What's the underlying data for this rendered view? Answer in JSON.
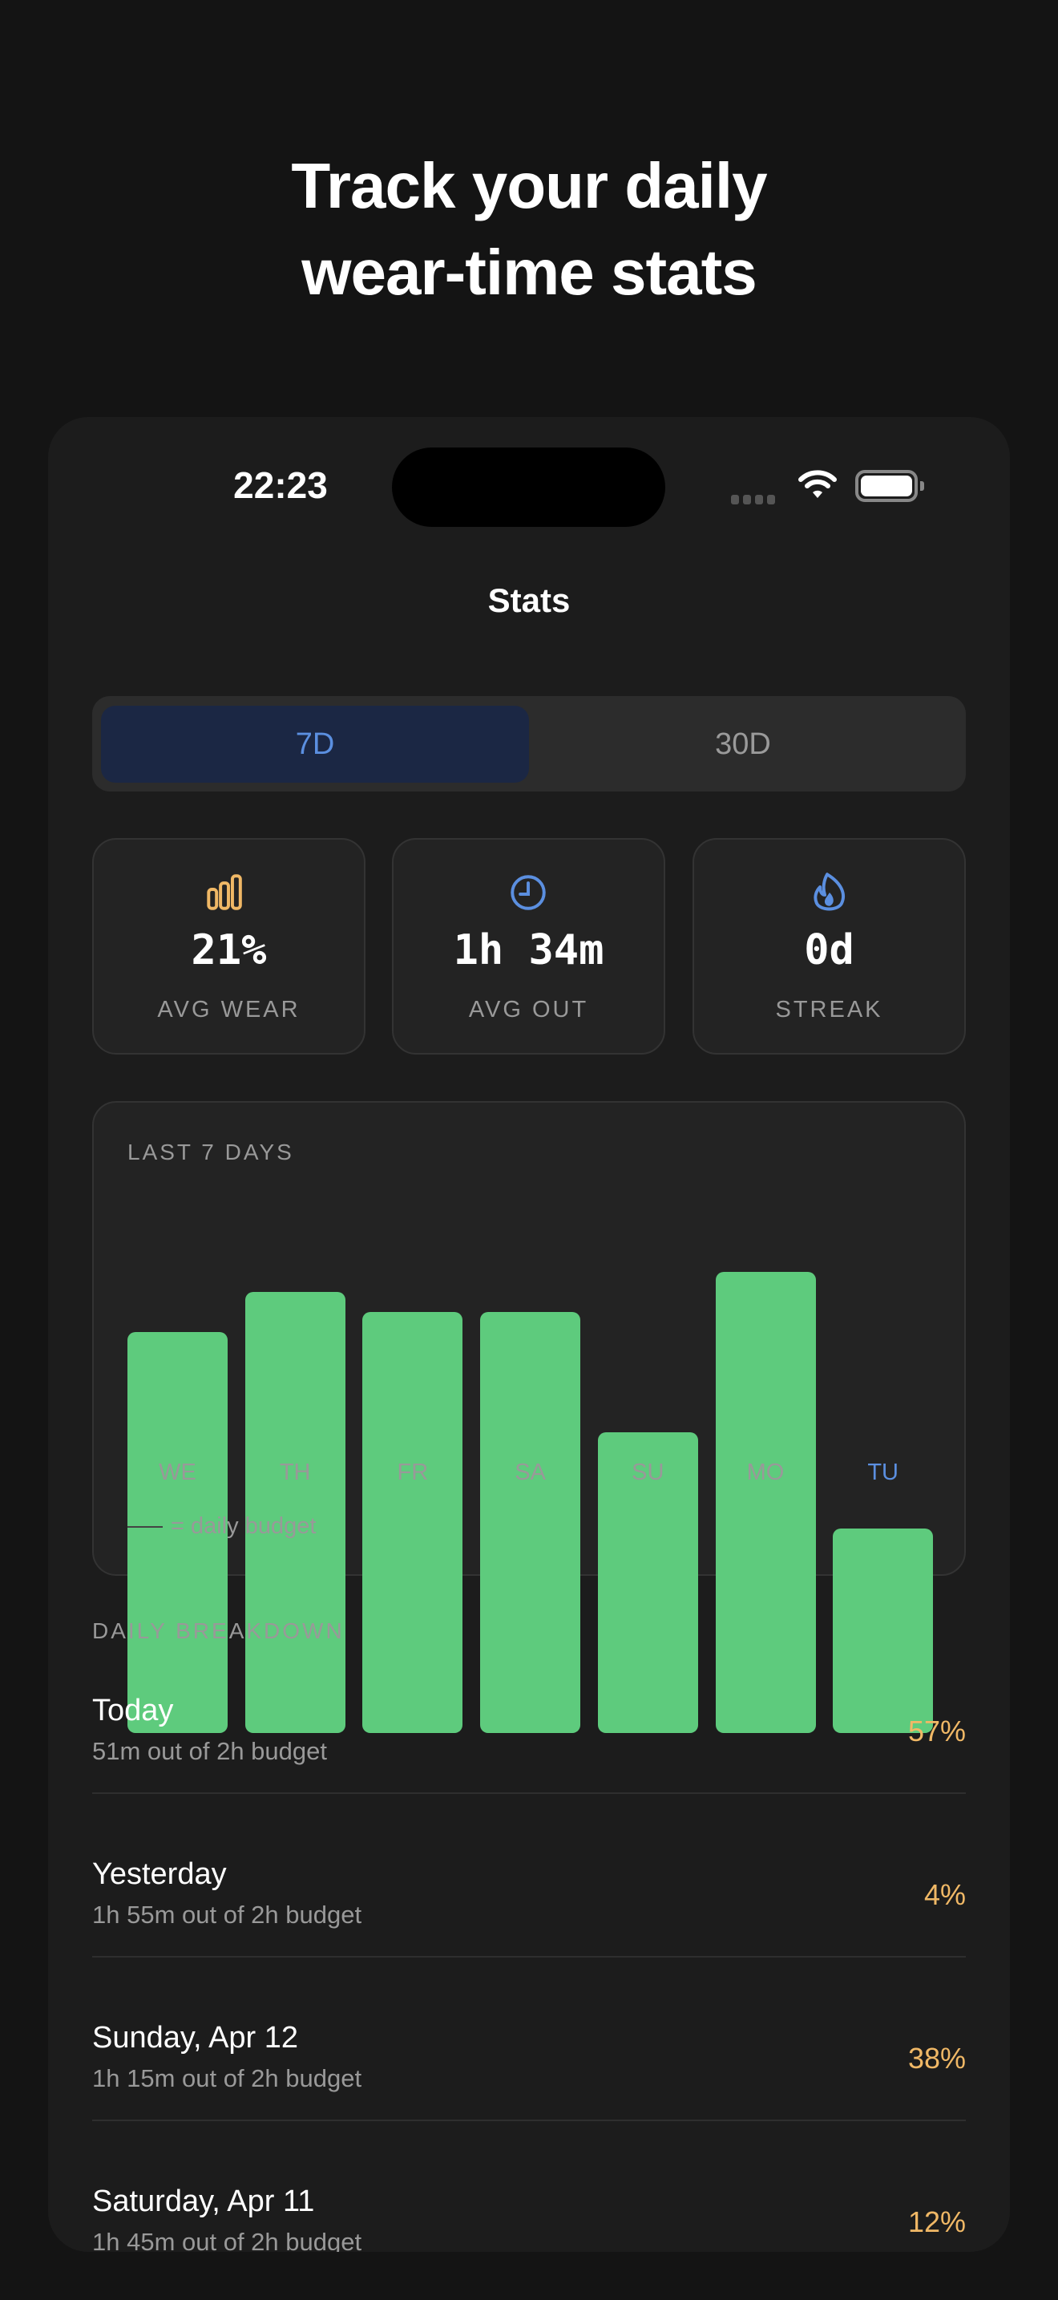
{
  "headline": {
    "line1": "Track your daily",
    "line2": "wear-time stats"
  },
  "status_bar": {
    "time": "22:23",
    "icons": [
      "signal-dots-icon",
      "wifi-icon",
      "battery-icon"
    ]
  },
  "nav": {
    "title": "Stats"
  },
  "segmented": {
    "options": [
      "7D",
      "30D"
    ],
    "selected": "7D"
  },
  "stats": [
    {
      "icon": "bar-chart-icon",
      "value": "21%",
      "label": "AVG WEAR",
      "color": "#f0b866"
    },
    {
      "icon": "clock-icon",
      "value": "1h 34m",
      "label": "AVG OUT",
      "color": "#5b8fe0"
    },
    {
      "icon": "flame-icon",
      "value": "0d",
      "label": "STREAK",
      "color": "#5b8fe0"
    }
  ],
  "chart_data": {
    "type": "bar",
    "title": "LAST 7 DAYS",
    "categories": [
      "WE",
      "TH",
      "FR",
      "SA",
      "SU",
      "MO",
      "TU"
    ],
    "values": [
      100,
      110,
      105,
      105,
      75,
      115,
      51
    ],
    "ylim": [
      0,
      120
    ],
    "highlight_category": "TU",
    "bar_color": "#5ecb7d",
    "highlight_label_color": "#5b8fe0",
    "legend": "= daily budget",
    "grid": false
  },
  "breakdown": {
    "title": "DAILY BREAKDOWN",
    "rows": [
      {
        "title": "Today",
        "subtitle": "51m out of 2h budget",
        "percent": "57%"
      },
      {
        "title": "Yesterday",
        "subtitle": "1h 55m out of 2h budget",
        "percent": "4%"
      },
      {
        "title": "Sunday, Apr 12",
        "subtitle": "1h 15m out of 2h budget",
        "percent": "38%"
      },
      {
        "title": "Saturday, Apr 11",
        "subtitle": "1h 45m out of 2h budget",
        "percent": "12%"
      }
    ]
  }
}
